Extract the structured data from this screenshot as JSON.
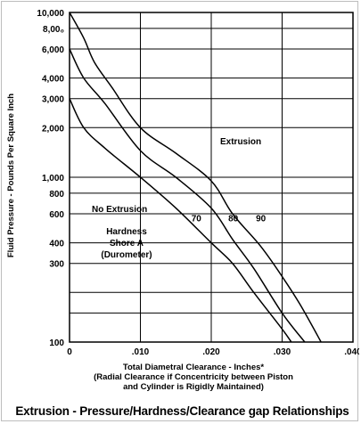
{
  "chart_data": {
    "type": "line",
    "title": "Extrusion - Pressure/Hardness/Clearance gap Relationships",
    "xlabel_lines": [
      "Total Diametral Clearance - Inches*",
      "(Radial Clearance if Concentricity between Piston",
      "and Cylinder is Rigidly Maintained)"
    ],
    "ylabel": "Fluid Pressure - Pounds Per Square Inch",
    "xlim": [
      0,
      0.04
    ],
    "ylim": [
      100,
      10000
    ],
    "yscale": "log",
    "grid": true,
    "x_ticks": [
      {
        "value": 0,
        "label": "0"
      },
      {
        "value": 0.01,
        "label": ".010"
      },
      {
        "value": 0.02,
        "label": ".020"
      },
      {
        "value": 0.03,
        "label": ".030"
      },
      {
        "value": 0.04,
        "label": ".040"
      }
    ],
    "y_ticks": [
      {
        "value": 10000,
        "label": "10,000"
      },
      {
        "value": 8000,
        "label": "8,00₀"
      },
      {
        "value": 6000,
        "label": "6,000"
      },
      {
        "value": 4000,
        "label": "4,000"
      },
      {
        "value": 3000,
        "label": "3,000"
      },
      {
        "value": 2000,
        "label": "2,000"
      },
      {
        "value": 1000,
        "label": "1,000"
      },
      {
        "value": 800,
        "label": "800"
      },
      {
        "value": 600,
        "label": "600"
      },
      {
        "value": 400,
        "label": "400"
      },
      {
        "value": 300,
        "label": "300"
      },
      {
        "value": 200,
        "label": ""
      },
      {
        "value": 150,
        "label": ""
      },
      {
        "value": 100,
        "label": "100"
      }
    ],
    "series": [
      {
        "name": "70",
        "points": [
          [
            0,
            3000
          ],
          [
            0.002,
            2000
          ],
          [
            0.005,
            1500
          ],
          [
            0.01,
            1000
          ],
          [
            0.015,
            650
          ],
          [
            0.02,
            400
          ],
          [
            0.023,
            300
          ],
          [
            0.026,
            200
          ],
          [
            0.03,
            120
          ],
          [
            0.0313,
            100
          ]
        ]
      },
      {
        "name": "80",
        "points": [
          [
            0,
            6000
          ],
          [
            0.002,
            4000
          ],
          [
            0.005,
            2800
          ],
          [
            0.01,
            1450
          ],
          [
            0.015,
            1000
          ],
          [
            0.02,
            650
          ],
          [
            0.023,
            420
          ],
          [
            0.026,
            280
          ],
          [
            0.03,
            150
          ],
          [
            0.0332,
            100
          ]
        ]
      },
      {
        "name": "90",
        "points": [
          [
            0,
            10000
          ],
          [
            0.002,
            7000
          ],
          [
            0.0035,
            5000
          ],
          [
            0.006,
            3500
          ],
          [
            0.01,
            2000
          ],
          [
            0.015,
            1400
          ],
          [
            0.02,
            950
          ],
          [
            0.023,
            600
          ],
          [
            0.027,
            380
          ],
          [
            0.03,
            250
          ],
          [
            0.0325,
            170
          ],
          [
            0.0355,
            100
          ]
        ]
      }
    ],
    "annotations": {
      "extrusion": "Extrusion",
      "no_extrusion": "No Extrusion",
      "hardness_lines": [
        "Hardness",
        "Shore A",
        "(Durometer)"
      ]
    }
  }
}
